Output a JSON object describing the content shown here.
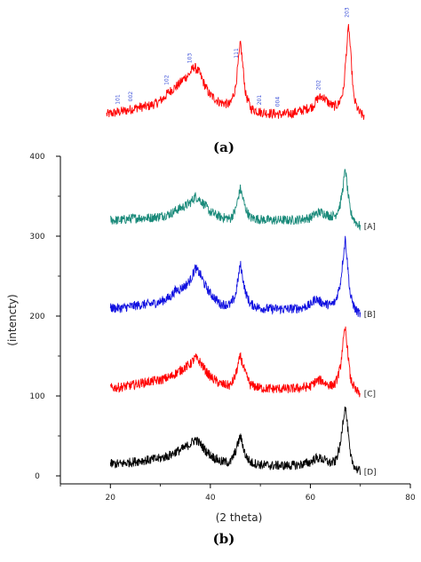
{
  "chart_data": [
    {
      "type": "line",
      "panel_label": "(a)",
      "axes_visible": false,
      "xlim": [
        20,
        70
      ],
      "peak_labels": [
        "101",
        "002",
        "102",
        "103",
        "111",
        "201",
        "004",
        "202",
        "203"
      ],
      "peak_positions": [
        22.5,
        25.0,
        32.0,
        36.5,
        45.5,
        50.0,
        53.5,
        61.5,
        67.0
      ],
      "series": [
        {
          "color": "#ff0000",
          "x": [
            20,
            22,
            24,
            26,
            28,
            30,
            31,
            32,
            33,
            34,
            35,
            36,
            37,
            38,
            39,
            40,
            42,
            44,
            45,
            46,
            47,
            48,
            50,
            52,
            54,
            56,
            58,
            60,
            61,
            62,
            63,
            64,
            65,
            66,
            66.5,
            67,
            67.5,
            68,
            69,
            70
          ],
          "y": [
            10,
            12,
            14,
            17,
            18,
            22,
            26,
            32,
            36,
            40,
            46,
            50,
            58,
            52,
            40,
            30,
            22,
            20,
            36,
            82,
            30,
            16,
            12,
            11,
            10,
            11,
            14,
            18,
            26,
            28,
            22,
            18,
            20,
            34,
            70,
            100,
            62,
            26,
            12,
            8
          ]
        }
      ]
    },
    {
      "type": "line",
      "panel_label": "(b)",
      "xlabel": "(2 theta)",
      "ylabel": "(intencty)",
      "xlim": [
        10,
        80
      ],
      "ylim": [
        -10,
        400
      ],
      "xticks": [
        20,
        40,
        60,
        80
      ],
      "xtick_labels": [
        "20",
        "40",
        "60",
        "80"
      ],
      "yticks": [
        0,
        100,
        200,
        300,
        400
      ],
      "ytick_labels": [
        "0",
        "100",
        "200",
        "300",
        "400"
      ],
      "series": [
        {
          "name": "[A]",
          "color": "#1a8a7a",
          "x": [
            20,
            22,
            24,
            26,
            28,
            30,
            32,
            33,
            34,
            35,
            36,
            37,
            38,
            39,
            40,
            42,
            44,
            45,
            46,
            47,
            48,
            50,
            52,
            54,
            56,
            58,
            60,
            61,
            62,
            63,
            64,
            65,
            66,
            66.5,
            67,
            67.5,
            68,
            69,
            70
          ],
          "y": [
            320,
            320,
            322,
            323,
            323,
            325,
            328,
            332,
            335,
            338,
            342,
            350,
            345,
            338,
            330,
            324,
            322,
            332,
            360,
            335,
            323,
            321,
            320,
            320,
            320,
            321,
            323,
            328,
            330,
            328,
            325,
            326,
            340,
            360,
            385,
            355,
            330,
            318,
            312
          ]
        },
        {
          "name": "[B]",
          "color": "#1010e0",
          "x": [
            20,
            22,
            24,
            26,
            28,
            30,
            32,
            33,
            34,
            35,
            36,
            37,
            38,
            39,
            40,
            42,
            44,
            45,
            46,
            47,
            48,
            50,
            52,
            54,
            56,
            58,
            60,
            61,
            62,
            63,
            64,
            65,
            66,
            66.5,
            67,
            67.5,
            68,
            69,
            70
          ],
          "y": [
            210,
            210,
            212,
            214,
            215,
            218,
            224,
            232,
            234,
            238,
            245,
            260,
            252,
            238,
            228,
            215,
            214,
            225,
            265,
            230,
            215,
            210,
            209,
            209,
            209,
            210,
            214,
            222,
            218,
            215,
            214,
            218,
            240,
            270,
            298,
            260,
            225,
            208,
            202
          ]
        },
        {
          "name": "[C]",
          "color": "#ff0000",
          "x": [
            20,
            22,
            24,
            26,
            28,
            30,
            32,
            33,
            34,
            35,
            36,
            37,
            38,
            39,
            40,
            42,
            44,
            45,
            46,
            47,
            48,
            50,
            52,
            54,
            56,
            58,
            60,
            61,
            62,
            63,
            64,
            65,
            66,
            66.5,
            67,
            67.5,
            68,
            69,
            70
          ],
          "y": [
            110,
            111,
            113,
            116,
            118,
            120,
            124,
            128,
            132,
            136,
            140,
            148,
            142,
            132,
            124,
            115,
            113,
            125,
            150,
            128,
            114,
            110,
            109,
            109,
            109,
            110,
            112,
            118,
            120,
            116,
            113,
            115,
            135,
            165,
            185,
            155,
            122,
            107,
            103
          ]
        },
        {
          "name": "[D]",
          "color": "#000000",
          "x": [
            20,
            22,
            24,
            26,
            28,
            30,
            32,
            33,
            34,
            35,
            36,
            37,
            38,
            39,
            40,
            42,
            44,
            45,
            46,
            47,
            48,
            50,
            52,
            54,
            56,
            58,
            60,
            61,
            62,
            63,
            64,
            65,
            66,
            66.5,
            67,
            67.5,
            68,
            69,
            70
          ],
          "y": [
            15,
            15,
            17,
            19,
            20,
            22,
            26,
            30,
            32,
            36,
            40,
            46,
            40,
            32,
            26,
            18,
            17,
            30,
            50,
            26,
            17,
            14,
            13,
            13,
            13,
            14,
            17,
            22,
            22,
            19,
            16,
            18,
            38,
            68,
            88,
            58,
            24,
            10,
            5
          ]
        }
      ]
    }
  ]
}
